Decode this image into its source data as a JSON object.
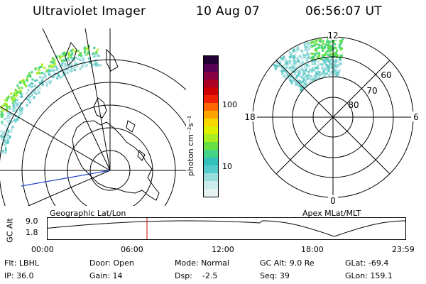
{
  "header": {
    "instrument": "Ultraviolet Imager",
    "date": "10 Aug 07",
    "time": "06:56:07 UT"
  },
  "colorbar": {
    "units": "photon cm⁻²s⁻¹",
    "ticks": [
      "100",
      "10"
    ],
    "colors": [
      "#e6f2f2",
      "#ccecec",
      "#99dddd",
      "#55cccc",
      "#33c0bb",
      "#44d488",
      "#66e044",
      "#aaee22",
      "#ddf000",
      "#f5d800",
      "#ffa500",
      "#ff6600",
      "#ee2200",
      "#cc0000",
      "#aa0022",
      "#880044",
      "#550055",
      "#220033"
    ]
  },
  "left_map": {
    "caption": "Geographic Lat/Lon"
  },
  "right_map": {
    "caption": "Apex  MLat/MLT",
    "mlt_labels": {
      "top": "12",
      "bottom": "0",
      "left": "18",
      "right": "6"
    },
    "lat_labels": [
      "60",
      "70",
      "80"
    ]
  },
  "altitude_strip": {
    "axis_title": "GC Alt",
    "y_ticks": [
      "9.0",
      "1.8"
    ],
    "x_ticks": [
      "00:00",
      "06:00",
      "12:00",
      "18:00",
      "23:59"
    ]
  },
  "info": {
    "row1": {
      "filter": "Flt: LBHL",
      "door": "Door: Open",
      "mode": "Mode: Normal",
      "gc_alt": "GC Alt: 9.0 Re",
      "glat": "GLat: -69.4"
    },
    "row2": {
      "ip": "IP: 36.0",
      "gain": "Gain: 14",
      "dsp": "Dsp:    -2.5",
      "seq": "Seq: 39",
      "glon": "GLon: 159.1"
    }
  }
}
